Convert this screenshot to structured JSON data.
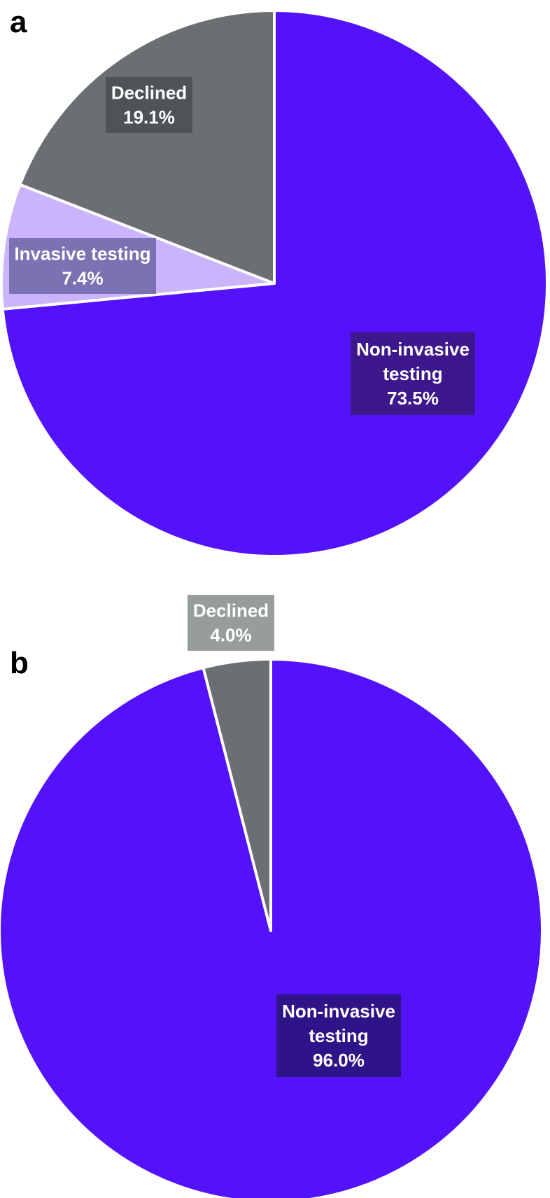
{
  "chart_data": [
    {
      "type": "pie",
      "panel_label": "a",
      "slices": [
        {
          "label_lines": [
            "Non-invasive",
            "testing",
            "73.5%"
          ],
          "value": 73.5,
          "color": "#5412fb",
          "label_bg": "#3c188c"
        },
        {
          "label_lines": [
            "Invasive testing",
            "7.4%"
          ],
          "value": 7.4,
          "color": "#cbb4fb",
          "label_bg": "#7a72b2"
        },
        {
          "label_lines": [
            "Declined",
            "19.1%"
          ],
          "value": 19.1,
          "color": "#6b6f72",
          "label_bg": "#4e5357"
        }
      ]
    },
    {
      "type": "pie",
      "panel_label": "b",
      "slices": [
        {
          "label_lines": [
            "Non-invasive",
            "testing",
            "96.0%"
          ],
          "value": 96.0,
          "color": "#5412fb",
          "label_bg": "#2e1488"
        },
        {
          "label_lines": [
            "Declined",
            "4.0%"
          ],
          "value": 4.0,
          "color": "#6b6f72",
          "label_bg": "#979d9d"
        }
      ]
    }
  ]
}
